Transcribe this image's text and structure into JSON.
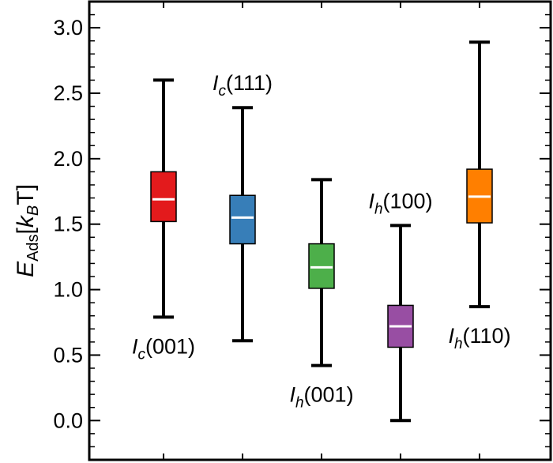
{
  "chart_data": {
    "type": "box",
    "ylabel": {
      "main": "E",
      "main_sub": "Ads",
      "open": "[",
      "k": "k",
      "k_sub": "B",
      "unit": "T",
      "close": "]"
    },
    "ylim": [
      -0.3,
      3.2
    ],
    "yticks": [
      "0.0",
      "0.5",
      "1.0",
      "1.5",
      "2.0",
      "2.5",
      "3.0"
    ],
    "yticks_values": [
      0.0,
      0.5,
      1.0,
      1.5,
      2.0,
      2.5,
      3.0
    ],
    "grid": false,
    "boxes": [
      {
        "label_main": "I",
        "label_sub": "c",
        "label_rest": "(001)",
        "label_position": "below",
        "color": "#e31a1c",
        "min": 0.79,
        "q1": 1.52,
        "median": 1.69,
        "q3": 1.9,
        "max": 2.6
      },
      {
        "label_main": "I",
        "label_sub": "c",
        "label_rest": "(111)",
        "label_position": "above",
        "color": "#377eb8",
        "min": 0.61,
        "q1": 1.35,
        "median": 1.55,
        "q3": 1.72,
        "max": 2.39
      },
      {
        "label_main": "I",
        "label_sub": "h",
        "label_rest": "(001)",
        "label_position": "below",
        "color": "#4daf4a",
        "min": 0.42,
        "q1": 1.01,
        "median": 1.17,
        "q3": 1.35,
        "max": 1.84
      },
      {
        "label_main": "I",
        "label_sub": "h",
        "label_rest": "(100)",
        "label_position": "above",
        "color": "#984ea3",
        "min": 0.0,
        "q1": 0.56,
        "median": 0.72,
        "q3": 0.88,
        "max": 1.49
      },
      {
        "label_main": "I",
        "label_sub": "h",
        "label_rest": "(110)",
        "label_position": "below",
        "color": "#ff7f00",
        "min": 0.87,
        "q1": 1.51,
        "median": 1.71,
        "q3": 1.92,
        "max": 2.89
      }
    ]
  }
}
